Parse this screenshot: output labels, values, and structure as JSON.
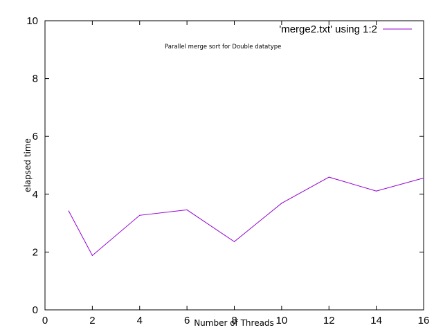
{
  "chart_data": {
    "type": "line",
    "title": "",
    "annotation": "Parallel merge sort for Double datatype",
    "xlabel": "Number of Threads",
    "ylabel": "elapsed time",
    "xlim": [
      0,
      16
    ],
    "ylim": [
      0,
      10
    ],
    "x_ticks": [
      "0",
      "2",
      "4",
      "6",
      "8",
      "10",
      "12",
      "14",
      "16"
    ],
    "y_ticks": [
      "0",
      "2",
      "4",
      "6",
      "8",
      "10"
    ],
    "grid": false,
    "legend_position": "top-right",
    "series": [
      {
        "name": "'merge2.txt' using 1:2",
        "color": "#9400d3",
        "x": [
          1,
          2,
          4,
          6,
          8,
          10,
          12,
          14,
          16
        ],
        "y": [
          3.42,
          1.88,
          3.27,
          3.46,
          2.36,
          3.69,
          4.59,
          4.11,
          4.56
        ]
      }
    ]
  }
}
